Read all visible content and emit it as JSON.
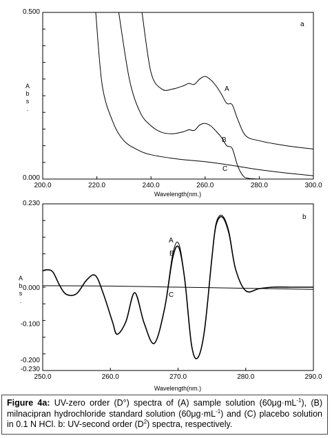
{
  "chart_data": [
    {
      "type": "line",
      "panel_label": "a",
      "title": "",
      "xlabel": "Wavelength(nm.)",
      "ylabel": "Abs.",
      "ylabel_letters": [
        "A",
        "b",
        "s",
        "."
      ],
      "xlim": [
        200,
        300
      ],
      "ylim": [
        0,
        0.5
      ],
      "x_ticks": [
        200,
        220,
        240,
        260,
        280,
        300
      ],
      "x_tick_labels": [
        "200.0",
        "220.0",
        "240.0",
        "260.0",
        "280.0",
        "300.0"
      ],
      "y_tick_labels": [
        {
          "value": 0.5,
          "label": "0.500"
        },
        {
          "value": 0,
          "label": "0.000"
        }
      ],
      "series": [
        {
          "name": "A",
          "x": [
            236.7,
            240,
            244,
            248,
            252,
            254,
            256,
            258,
            260,
            262,
            264,
            266,
            268,
            270,
            272,
            275,
            280,
            290,
            300
          ],
          "y": [
            0.5,
            0.32,
            0.27,
            0.27,
            0.28,
            0.287,
            0.284,
            0.3,
            0.308,
            0.298,
            0.28,
            0.255,
            0.227,
            0.223,
            0.18,
            0.13,
            0.115,
            0.1,
            0.09
          ]
        },
        {
          "name": "B",
          "x": [
            228.1,
            232,
            236,
            240,
            244,
            248,
            252,
            254,
            256,
            258,
            260,
            262,
            264,
            266,
            268,
            270,
            272,
            274,
            276,
            280
          ],
          "y": [
            0.5,
            0.3,
            0.2,
            0.16,
            0.14,
            0.136,
            0.142,
            0.148,
            0.146,
            0.162,
            0.167,
            0.16,
            0.144,
            0.125,
            0.1,
            0.092,
            0.04,
            0.01,
            0.002,
            0.0
          ]
        },
        {
          "name": "C",
          "x": [
            219.6,
            222,
            226,
            230,
            235,
            240,
            250,
            260,
            270,
            280,
            290,
            300
          ],
          "y": [
            0.5,
            0.28,
            0.17,
            0.115,
            0.088,
            0.073,
            0.06,
            0.052,
            0.041,
            0.028,
            0.018,
            0.01
          ]
        }
      ]
    },
    {
      "type": "line",
      "panel_label": "b",
      "title": "",
      "xlabel": "Wavelength(nm.)",
      "ylabel": "Abs.",
      "ylabel_letters": [
        "A",
        "b",
        "s",
        "."
      ],
      "xlim": [
        250,
        290
      ],
      "ylim": [
        -0.23,
        0.23
      ],
      "x_ticks": [
        250,
        260,
        270,
        280,
        290
      ],
      "x_tick_labels": [
        "250.0",
        "260.0",
        "270.0",
        "280.0",
        "290.0"
      ],
      "y_tick_labels": [
        {
          "value": 0.23,
          "label": "0.230"
        },
        {
          "value": 0.0,
          "label": "0.000"
        },
        {
          "value": -0.1,
          "label": "-0.100"
        },
        {
          "value": -0.2,
          "label": "-0.200"
        },
        {
          "value": -0.23,
          "label": "-0.230"
        }
      ],
      "series": [
        {
          "name": "A",
          "x": [
            250,
            250.6,
            251.5,
            252.5,
            253.5,
            255,
            256.5,
            257.8,
            259,
            260.3,
            261,
            262.3,
            263.6,
            265,
            266.5,
            268,
            269.2,
            270.1,
            271,
            272,
            272.9,
            273.9,
            275,
            275.6,
            276.5,
            277.5,
            278.5,
            280,
            282,
            284,
            287,
            290
          ],
          "y": [
            0.045,
            0.048,
            0.042,
            0.005,
            -0.02,
            -0.018,
            0.02,
            0.032,
            -0.02,
            -0.095,
            -0.13,
            -0.095,
            -0.015,
            -0.1,
            -0.155,
            -0.06,
            0.09,
            0.12,
            0.02,
            -0.16,
            -0.195,
            -0.12,
            0.08,
            0.175,
            0.198,
            0.155,
            0.05,
            -0.01,
            -0.004,
            0.0,
            0.0,
            0.0
          ]
        },
        {
          "name": "B",
          "x": [
            250,
            250.6,
            251.5,
            252.5,
            253.5,
            255,
            256.5,
            257.8,
            259,
            260.3,
            261,
            262.3,
            263.6,
            265,
            266.5,
            268,
            269.2,
            270.1,
            271,
            272,
            272.9,
            273.9,
            275,
            275.6,
            276.5,
            277.5,
            278.5,
            280,
            282,
            284,
            287,
            290
          ],
          "y": [
            0.045,
            0.048,
            0.042,
            0.005,
            -0.02,
            -0.018,
            0.02,
            0.032,
            -0.02,
            -0.095,
            -0.13,
            -0.095,
            -0.015,
            -0.1,
            -0.155,
            -0.06,
            0.08,
            0.11,
            0.02,
            -0.16,
            -0.195,
            -0.12,
            0.08,
            0.17,
            0.194,
            0.15,
            0.05,
            -0.01,
            -0.004,
            0.0,
            0.0,
            0.0
          ]
        },
        {
          "name": "C",
          "x": [
            250,
            260,
            270,
            280,
            290
          ],
          "y": [
            0.004,
            0.003,
            0.0,
            -0.003,
            -0.006
          ]
        }
      ]
    }
  ],
  "caption": {
    "label": "Figure 4a:",
    "text_1": " UV-zero order (D°) spectra of (A) sample solution (60μg·mL",
    "sup_1": "-1",
    "text_2": "), (B) milnacipran hydrochloride standard solution (60μg·mL",
    "sup_2": "-1",
    "text_3": ") and (C) placebo solution in 0.1 N HCl. b: UV-second order (D",
    "sup_3": "2",
    "text_4": ") spectra, respectively."
  }
}
